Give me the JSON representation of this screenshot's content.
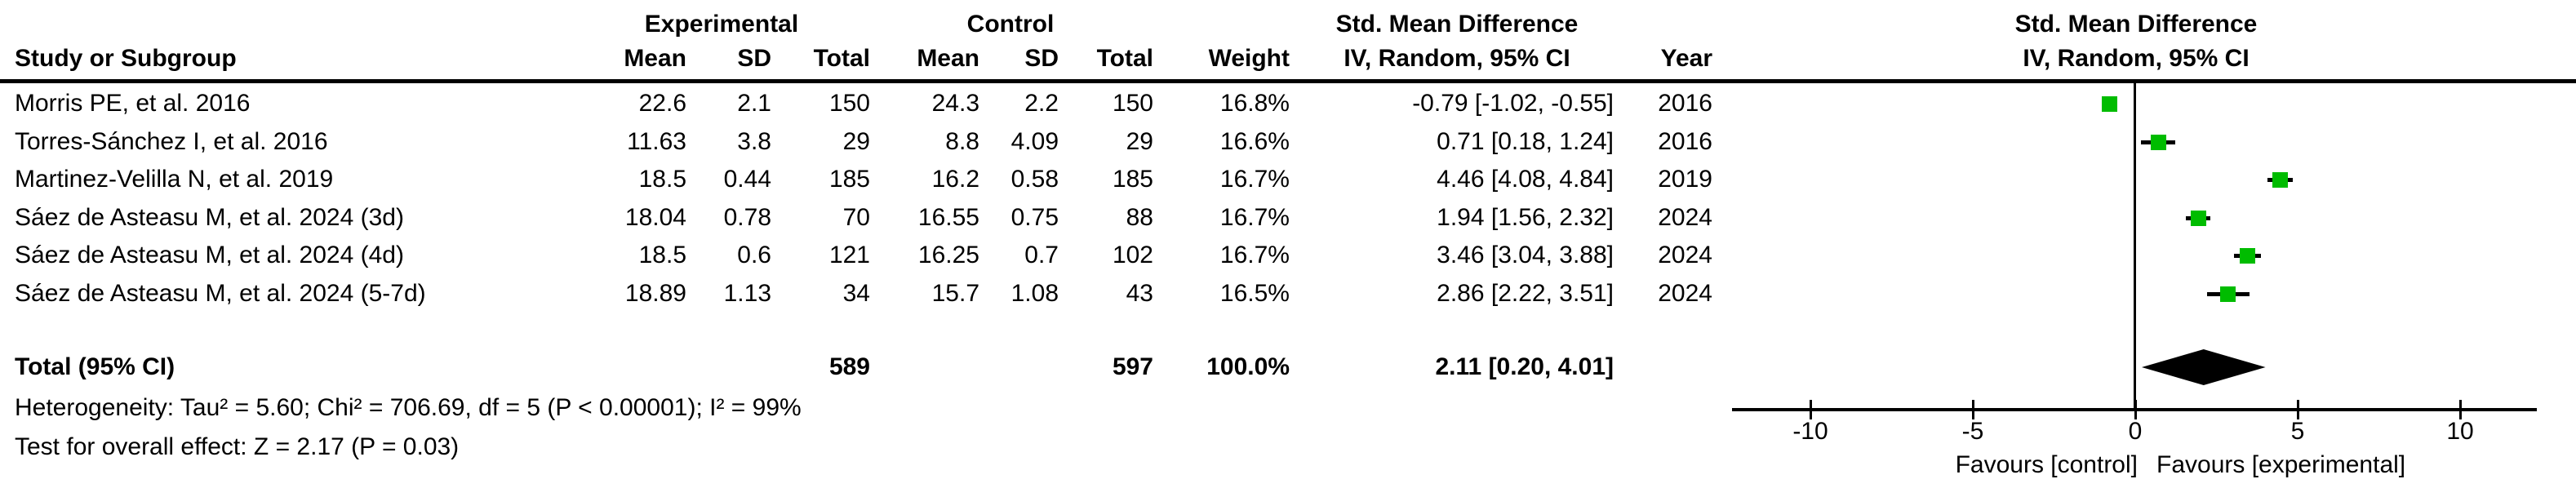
{
  "table": {
    "headers": {
      "group_experimental": "Experimental",
      "group_control": "Control",
      "group_smd": "Std. Mean Difference",
      "study": "Study or Subgroup",
      "mean_e": "Mean",
      "sd_e": "SD",
      "total_e": "Total",
      "mean_c": "Mean",
      "sd_c": "SD",
      "total_c": "Total",
      "weight": "Weight",
      "iv": "IV, Random, 95% CI",
      "year": "Year"
    },
    "rows": [
      {
        "study": "Morris PE, et al. 2016",
        "mean_e": "22.6",
        "sd_e": "2.1",
        "total_e": "150",
        "mean_c": "24.3",
        "sd_c": "2.2",
        "total_c": "150",
        "weight": "16.8%",
        "ci": "-0.79 [-1.02, -0.55]",
        "year": "2016"
      },
      {
        "study": "Torres-Sánchez I, et al. 2016",
        "mean_e": "11.63",
        "sd_e": "3.8",
        "total_e": "29",
        "mean_c": "8.8",
        "sd_c": "4.09",
        "total_c": "29",
        "weight": "16.6%",
        "ci": "0.71 [0.18, 1.24]",
        "year": "2016"
      },
      {
        "study": "Martinez-Velilla N, et al. 2019",
        "mean_e": "18.5",
        "sd_e": "0.44",
        "total_e": "185",
        "mean_c": "16.2",
        "sd_c": "0.58",
        "total_c": "185",
        "weight": "16.7%",
        "ci": "4.46 [4.08, 4.84]",
        "year": "2019"
      },
      {
        "study": "Sáez de Asteasu M, et al. 2024 (3d)",
        "mean_e": "18.04",
        "sd_e": "0.78",
        "total_e": "70",
        "mean_c": "16.55",
        "sd_c": "0.75",
        "total_c": "88",
        "weight": "16.7%",
        "ci": "1.94 [1.56, 2.32]",
        "year": "2024"
      },
      {
        "study": "Sáez de Asteasu M, et al. 2024 (4d)",
        "mean_e": "18.5",
        "sd_e": "0.6",
        "total_e": "121",
        "mean_c": "16.25",
        "sd_c": "0.7",
        "total_c": "102",
        "weight": "16.7%",
        "ci": "3.46 [3.04, 3.88]",
        "year": "2024"
      },
      {
        "study": "Sáez de Asteasu M, et al. 2024 (5-7d)",
        "mean_e": "18.89",
        "sd_e": "1.13",
        "total_e": "34",
        "mean_c": "15.7",
        "sd_c": "1.08",
        "total_c": "43",
        "weight": "16.5%",
        "ci": "2.86 [2.22, 3.51]",
        "year": "2024"
      }
    ],
    "total_row": {
      "label": "Total (95% CI)",
      "total_e": "589",
      "total_c": "597",
      "weight": "100.0%",
      "ci": "2.11 [0.20, 4.01]"
    },
    "footnotes": {
      "heterogeneity": "Heterogeneity: Tau² = 5.60; Chi² = 706.69, df = 5 (P < 0.00001); I² = 99%",
      "overall_effect": "Test for overall effect: Z = 2.17 (P = 0.03)"
    }
  },
  "plot": {
    "title": "Std. Mean Difference",
    "subtitle": "IV, Random, 95% CI"
  },
  "chart_data": {
    "type": "forest",
    "title": "Std. Mean Difference",
    "method": "IV, Random, 95% CI",
    "studies": [
      {
        "name": "Morris PE, et al. 2016",
        "est": -0.79,
        "lo": -1.02,
        "hi": -0.55,
        "weight_pct": 16.8,
        "year": 2016
      },
      {
        "name": "Torres-Sánchez I, et al. 2016",
        "est": 0.71,
        "lo": 0.18,
        "hi": 1.24,
        "weight_pct": 16.6,
        "year": 2016
      },
      {
        "name": "Martinez-Velilla N, et al. 2019",
        "est": 4.46,
        "lo": 4.08,
        "hi": 4.84,
        "weight_pct": 16.7,
        "year": 2019
      },
      {
        "name": "Sáez de Asteasu M, et al. 2024 (3d)",
        "est": 1.94,
        "lo": 1.56,
        "hi": 2.32,
        "weight_pct": 16.7,
        "year": 2024
      },
      {
        "name": "Sáez de Asteasu M, et al. 2024 (4d)",
        "est": 3.46,
        "lo": 3.04,
        "hi": 3.88,
        "weight_pct": 16.7,
        "year": 2024
      },
      {
        "name": "Sáez de Asteasu M, et al. 2024 (5-7d)",
        "est": 2.86,
        "lo": 2.22,
        "hi": 3.51,
        "weight_pct": 16.5,
        "year": 2024
      }
    ],
    "total": {
      "label": "Total (95% CI)",
      "est": 2.11,
      "lo": 0.2,
      "hi": 4.01,
      "total_e": 589,
      "total_c": 597,
      "weight_pct": 100.0
    },
    "heterogeneity": {
      "tau2": 5.6,
      "chi2": 706.69,
      "df": 5,
      "p": "< 0.00001",
      "i2_pct": 99
    },
    "overall_effect": {
      "z": 2.17,
      "p": 0.03
    },
    "axis": {
      "ticks": [
        -10,
        -5,
        0,
        5,
        10
      ],
      "xlim": [
        -12.4,
        12.4
      ],
      "favours_left": "Favours [control]",
      "favours_right": "Favours [experimental]"
    },
    "marker_color": "#00bc00",
    "diamond_color": "#000000"
  }
}
